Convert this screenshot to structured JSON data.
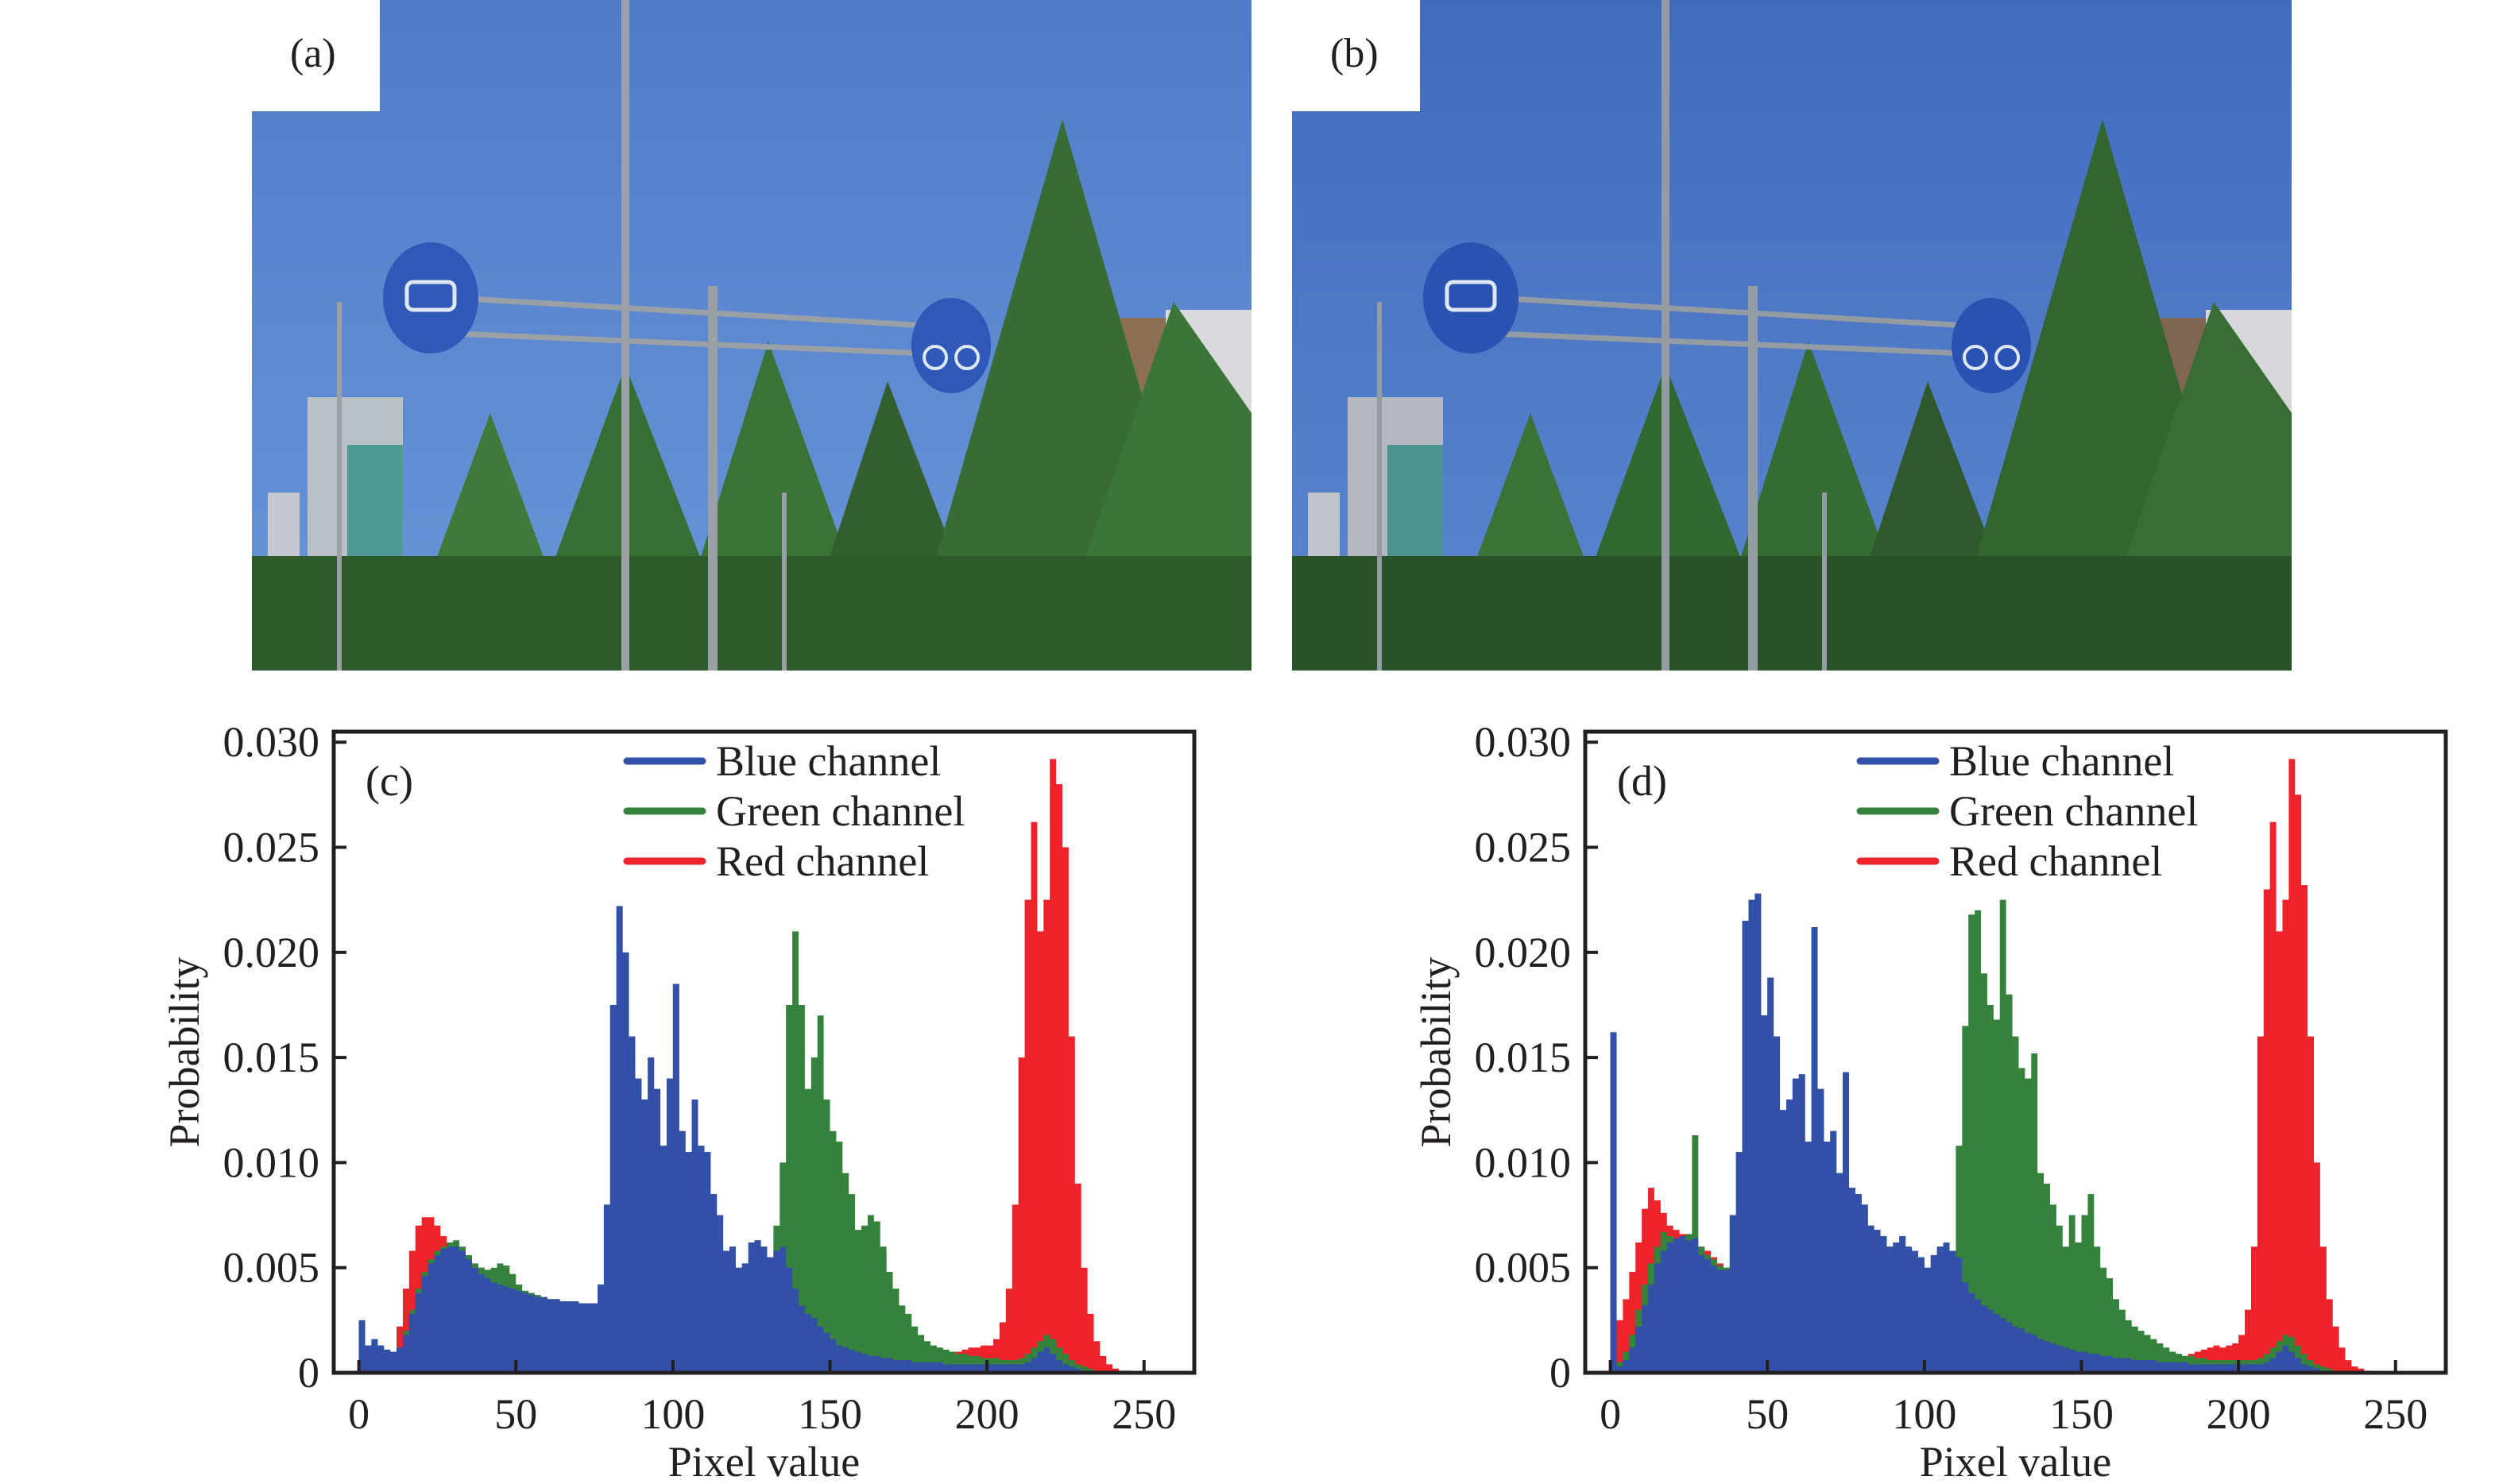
{
  "figure": {
    "panels": [
      {
        "id": "a",
        "label": "(a)",
        "type": "photo",
        "description": "Street scene: blue sky, two round blue traffic signs (car, bicycle) on a gantry, poles, street lamp, buildings, green trees"
      },
      {
        "id": "b",
        "label": "(b)",
        "type": "photo",
        "description": "Same street scene with color-corrected / enhanced tones"
      }
    ],
    "colors": {
      "blue_channel": "#3350a8",
      "green_channel": "#35823d",
      "red_channel": "#ee222b",
      "sky_a": "#5b87cc",
      "sky_b": "#4a72c2",
      "foliage": "#3a6e35",
      "sign": "#2f58b8",
      "axis": "#231f20"
    }
  },
  "chart_data": [
    {
      "id": "c",
      "type": "area",
      "panel_label": "(c)",
      "title": "",
      "xlabel": "Pixel value",
      "ylabel": "Probability",
      "xlim": [
        -8,
        266
      ],
      "ylim": [
        0,
        0.0305
      ],
      "xticks": [
        0,
        50,
        100,
        150,
        200,
        250
      ],
      "xtick_labels": [
        "0",
        "50",
        "100",
        "150",
        "200",
        "250"
      ],
      "yticks": [
        0,
        0.005,
        0.01,
        0.015,
        0.02,
        0.025,
        0.03
      ],
      "ytick_labels": [
        "0",
        "0.005",
        "0.010",
        "0.015",
        "0.020",
        "0.025",
        "0.030"
      ],
      "grid": false,
      "legend": {
        "position": "top-center",
        "entries": [
          "Blue channel",
          "Green channel",
          "Red channel"
        ]
      },
      "bin_width": 2,
      "x_start": 0,
      "series": [
        {
          "name": "Red channel",
          "color_key": "red_channel",
          "values": [
            0.0008,
            0.0012,
            0.0011,
            0.001,
            0.0009,
            0.001,
            0.0022,
            0.004,
            0.0058,
            0.007,
            0.0074,
            0.0074,
            0.007,
            0.0065,
            0.0062,
            0.006,
            0.0058,
            0.0055,
            0.0052,
            0.005,
            0.0048,
            0.0046,
            0.0044,
            0.0042,
            0.004,
            0.0039,
            0.0038,
            0.0037,
            0.0036,
            0.0036,
            0.0035,
            0.0035,
            0.0034,
            0.0034,
            0.0034,
            0.0033,
            0.0033,
            0.0033,
            0.003,
            0.0028,
            0.0026,
            0.0024,
            0.0022,
            0.002,
            0.0018,
            0.0017,
            0.0016,
            0.0015,
            0.0014,
            0.0013,
            0.0012,
            0.0012,
            0.0011,
            0.0011,
            0.001,
            0.001,
            0.001,
            0.001,
            0.0009,
            0.0009,
            0.0009,
            0.0009,
            0.0008,
            0.0008,
            0.0008,
            0.0008,
            0.0008,
            0.0008,
            0.0008,
            0.0007,
            0.0007,
            0.0007,
            0.0007,
            0.0007,
            0.0007,
            0.0007,
            0.0007,
            0.0007,
            0.0007,
            0.0006,
            0.0006,
            0.0006,
            0.0006,
            0.0006,
            0.0006,
            0.0006,
            0.0006,
            0.0006,
            0.0006,
            0.0006,
            0.0006,
            0.0006,
            0.0007,
            0.0008,
            0.0009,
            0.001,
            0.0011,
            0.0012,
            0.0012,
            0.0013,
            0.0013,
            0.0016,
            0.0024,
            0.004,
            0.008,
            0.015,
            0.0225,
            0.0262,
            0.021,
            0.0225,
            0.0292,
            0.028,
            0.025,
            0.016,
            0.009,
            0.005,
            0.0028,
            0.0015,
            0.0008,
            0.0004,
            0.0002,
            0.0001,
            0.0001,
            0.0,
            0.0,
            0.0,
            0.0,
            0.0
          ]
        },
        {
          "name": "Green channel",
          "color_key": "green_channel",
          "values": [
            0.0025,
            0.0013,
            0.0016,
            0.0013,
            0.0011,
            0.001,
            0.0012,
            0.002,
            0.003,
            0.004,
            0.0048,
            0.0054,
            0.0058,
            0.006,
            0.0062,
            0.0063,
            0.006,
            0.0056,
            0.0052,
            0.005,
            0.0049,
            0.005,
            0.0052,
            0.0051,
            0.0047,
            0.0042,
            0.0039,
            0.0038,
            0.0037,
            0.0036,
            0.0035,
            0.0035,
            0.0034,
            0.0034,
            0.0034,
            0.0033,
            0.0033,
            0.0033,
            0.0042,
            0.008,
            0.0175,
            0.0222,
            0.02,
            0.016,
            0.014,
            0.013,
            0.015,
            0.0135,
            0.0108,
            0.014,
            0.0185,
            0.0115,
            0.0105,
            0.013,
            0.0108,
            0.0105,
            0.0085,
            0.0075,
            0.0058,
            0.006,
            0.005,
            0.0052,
            0.0062,
            0.0063,
            0.006,
            0.0055,
            0.007,
            0.01,
            0.0175,
            0.021,
            0.0175,
            0.0135,
            0.015,
            0.017,
            0.013,
            0.0115,
            0.011,
            0.0095,
            0.0085,
            0.0068,
            0.007,
            0.0075,
            0.0072,
            0.006,
            0.0048,
            0.004,
            0.0032,
            0.0028,
            0.0022,
            0.0018,
            0.0015,
            0.0013,
            0.0012,
            0.0011,
            0.001,
            0.0009,
            0.0009,
            0.0008,
            0.0008,
            0.0007,
            0.0007,
            0.0007,
            0.0006,
            0.0006,
            0.0006,
            0.0007,
            0.0009,
            0.0012,
            0.0015,
            0.0018,
            0.0016,
            0.0012,
            0.0009,
            0.0006,
            0.0004,
            0.0003,
            0.0002,
            0.0001,
            0.0001,
            0.0,
            0.0,
            0.0,
            0.0,
            0.0,
            0.0,
            0.0,
            0.0,
            0.0
          ]
        },
        {
          "name": "Blue channel",
          "color_key": "blue_channel",
          "values": [
            0.0025,
            0.0013,
            0.0016,
            0.0013,
            0.0011,
            0.001,
            0.0012,
            0.0018,
            0.0028,
            0.0038,
            0.0046,
            0.0052,
            0.0056,
            0.0059,
            0.006,
            0.006,
            0.0058,
            0.0054,
            0.005,
            0.0047,
            0.0045,
            0.0043,
            0.0042,
            0.0041,
            0.004,
            0.0039,
            0.0038,
            0.0037,
            0.0036,
            0.0036,
            0.0035,
            0.0035,
            0.0034,
            0.0034,
            0.0034,
            0.0033,
            0.0033,
            0.0033,
            0.0042,
            0.008,
            0.0175,
            0.0222,
            0.02,
            0.016,
            0.014,
            0.013,
            0.015,
            0.0135,
            0.0108,
            0.014,
            0.0185,
            0.0115,
            0.0105,
            0.013,
            0.0108,
            0.0105,
            0.0085,
            0.0075,
            0.0058,
            0.006,
            0.005,
            0.0052,
            0.0062,
            0.0063,
            0.006,
            0.0055,
            0.0058,
            0.006,
            0.005,
            0.004,
            0.0032,
            0.0028,
            0.0026,
            0.0022,
            0.0019,
            0.0016,
            0.0013,
            0.0012,
            0.0011,
            0.001,
            0.0009,
            0.0008,
            0.0008,
            0.0007,
            0.0007,
            0.0006,
            0.0006,
            0.0006,
            0.0005,
            0.0005,
            0.0005,
            0.0005,
            0.0005,
            0.0004,
            0.0004,
            0.0004,
            0.0004,
            0.0004,
            0.0004,
            0.0004,
            0.0004,
            0.0004,
            0.0004,
            0.0004,
            0.0004,
            0.0004,
            0.0005,
            0.0007,
            0.001,
            0.0012,
            0.0009,
            0.0006,
            0.0004,
            0.0003,
            0.0002,
            0.0001,
            0.0001,
            0.0,
            0.0,
            0.0,
            0.0,
            0.0,
            0.0,
            0.0,
            0.0,
            0.0,
            0.0,
            0.0
          ]
        }
      ]
    },
    {
      "id": "d",
      "type": "area",
      "panel_label": "(d)",
      "title": "",
      "xlabel": "Pixel value",
      "ylabel": "Probability",
      "xlim": [
        -8,
        266
      ],
      "ylim": [
        0,
        0.0305
      ],
      "xticks": [
        0,
        50,
        100,
        150,
        200,
        250
      ],
      "xtick_labels": [
        "0",
        "50",
        "100",
        "150",
        "200",
        "250"
      ],
      "yticks": [
        0,
        0.005,
        0.01,
        0.015,
        0.02,
        0.025,
        0.03
      ],
      "ytick_labels": [
        "0",
        "0.005",
        "0.010",
        "0.015",
        "0.020",
        "0.025",
        "0.030"
      ],
      "grid": false,
      "legend": {
        "position": "top-center",
        "entries": [
          "Blue channel",
          "Green channel",
          "Red channel"
        ]
      },
      "bin_width": 2,
      "x_start": 0,
      "series": [
        {
          "name": "Red channel",
          "color_key": "red_channel",
          "values": [
            0.0005,
            0.0025,
            0.0035,
            0.0048,
            0.0062,
            0.0078,
            0.0088,
            0.0082,
            0.0076,
            0.007,
            0.0068,
            0.0066,
            0.0064,
            0.0062,
            0.006,
            0.0058,
            0.0055,
            0.0052,
            0.005,
            0.0048,
            0.0046,
            0.0045,
            0.0044,
            0.0043,
            0.0042,
            0.0041,
            0.004,
            0.0039,
            0.0038,
            0.0037,
            0.0036,
            0.0035,
            0.0034,
            0.0033,
            0.0032,
            0.0031,
            0.003,
            0.0029,
            0.0028,
            0.0027,
            0.0026,
            0.0025,
            0.0024,
            0.0023,
            0.0022,
            0.0021,
            0.002,
            0.0019,
            0.0018,
            0.0017,
            0.0016,
            0.0015,
            0.0014,
            0.0013,
            0.0012,
            0.0012,
            0.0011,
            0.0011,
            0.001,
            0.001,
            0.001,
            0.0009,
            0.0009,
            0.0009,
            0.0008,
            0.0008,
            0.0008,
            0.0008,
            0.0007,
            0.0007,
            0.0007,
            0.0007,
            0.0007,
            0.0007,
            0.0007,
            0.0007,
            0.0007,
            0.0007,
            0.0007,
            0.0007,
            0.0007,
            0.0007,
            0.0007,
            0.0007,
            0.0007,
            0.0007,
            0.0007,
            0.0007,
            0.0007,
            0.0007,
            0.0007,
            0.0008,
            0.0009,
            0.001,
            0.0011,
            0.0012,
            0.0013,
            0.0012,
            0.0013,
            0.0014,
            0.0018,
            0.003,
            0.006,
            0.016,
            0.023,
            0.0262,
            0.021,
            0.0225,
            0.0292,
            0.0275,
            0.0232,
            0.016,
            0.01,
            0.006,
            0.0035,
            0.0022,
            0.0012,
            0.0006,
            0.0003,
            0.0002,
            0.0001,
            0.0,
            0.0,
            0.0,
            0.0,
            0.0,
            0.0,
            0.0
          ]
        },
        {
          "name": "Green channel",
          "color_key": "green_channel",
          "values": [
            0.0162,
            0.0005,
            0.001,
            0.0018,
            0.003,
            0.0042,
            0.0052,
            0.006,
            0.0067,
            0.0065,
            0.0062,
            0.0063,
            0.0066,
            0.0113,
            0.006,
            0.0056,
            0.0054,
            0.0051,
            0.005,
            0.0075,
            0.0105,
            0.0215,
            0.0225,
            0.0228,
            0.017,
            0.0188,
            0.016,
            0.0125,
            0.013,
            0.014,
            0.0142,
            0.011,
            0.0212,
            0.0135,
            0.011,
            0.0115,
            0.0095,
            0.0143,
            0.0088,
            0.0085,
            0.008,
            0.007,
            0.0068,
            0.0065,
            0.006,
            0.0062,
            0.0065,
            0.006,
            0.0058,
            0.0055,
            0.005,
            0.0056,
            0.006,
            0.0062,
            0.0058,
            0.0108,
            0.0165,
            0.0218,
            0.022,
            0.019,
            0.0175,
            0.0168,
            0.0225,
            0.018,
            0.016,
            0.0145,
            0.014,
            0.0152,
            0.0095,
            0.009,
            0.008,
            0.007,
            0.006,
            0.0075,
            0.0062,
            0.0075,
            0.0085,
            0.006,
            0.005,
            0.0045,
            0.0035,
            0.003,
            0.0025,
            0.0022,
            0.002,
            0.0018,
            0.0016,
            0.0014,
            0.0012,
            0.001,
            0.0009,
            0.0008,
            0.0008,
            0.0007,
            0.0007,
            0.0006,
            0.0006,
            0.0006,
            0.0006,
            0.0006,
            0.0006,
            0.0006,
            0.0006,
            0.0007,
            0.0009,
            0.0012,
            0.0015,
            0.0018,
            0.0017,
            0.0013,
            0.0009,
            0.0006,
            0.0004,
            0.0003,
            0.0002,
            0.0001,
            0.0001,
            0.0,
            0.0,
            0.0,
            0.0,
            0.0,
            0.0,
            0.0,
            0.0,
            0.0,
            0.0,
            0.0
          ]
        },
        {
          "name": "Blue channel",
          "color_key": "blue_channel",
          "values": [
            0.0162,
            0.0003,
            0.0006,
            0.0012,
            0.0022,
            0.0032,
            0.0042,
            0.0052,
            0.0058,
            0.0062,
            0.0064,
            0.0065,
            0.0063,
            0.0064,
            0.0056,
            0.0054,
            0.0051,
            0.0049,
            0.0049,
            0.0075,
            0.0105,
            0.0215,
            0.0225,
            0.0228,
            0.017,
            0.0188,
            0.016,
            0.0125,
            0.013,
            0.014,
            0.0142,
            0.011,
            0.0212,
            0.0135,
            0.011,
            0.0115,
            0.0095,
            0.0143,
            0.0088,
            0.0085,
            0.008,
            0.007,
            0.0068,
            0.0065,
            0.006,
            0.0062,
            0.0065,
            0.006,
            0.0058,
            0.0055,
            0.005,
            0.0056,
            0.006,
            0.0062,
            0.0058,
            0.0055,
            0.0043,
            0.0038,
            0.0035,
            0.0032,
            0.003,
            0.0028,
            0.0026,
            0.0024,
            0.0022,
            0.0021,
            0.0019,
            0.0018,
            0.0016,
            0.0015,
            0.0014,
            0.0013,
            0.0012,
            0.0011,
            0.001,
            0.001,
            0.0009,
            0.0009,
            0.0008,
            0.0008,
            0.0007,
            0.0007,
            0.0007,
            0.0006,
            0.0006,
            0.0006,
            0.0006,
            0.0005,
            0.0005,
            0.0005,
            0.0005,
            0.0005,
            0.0004,
            0.0004,
            0.0004,
            0.0004,
            0.0004,
            0.0004,
            0.0004,
            0.0004,
            0.0004,
            0.0004,
            0.0004,
            0.0004,
            0.0005,
            0.0007,
            0.001,
            0.0013,
            0.001,
            0.0007,
            0.0004,
            0.0003,
            0.0002,
            0.0001,
            0.0001,
            0.0,
            0.0,
            0.0,
            0.0,
            0.0,
            0.0,
            0.0,
            0.0,
            0.0,
            0.0,
            0.0,
            0.0,
            0.0
          ]
        }
      ]
    }
  ]
}
